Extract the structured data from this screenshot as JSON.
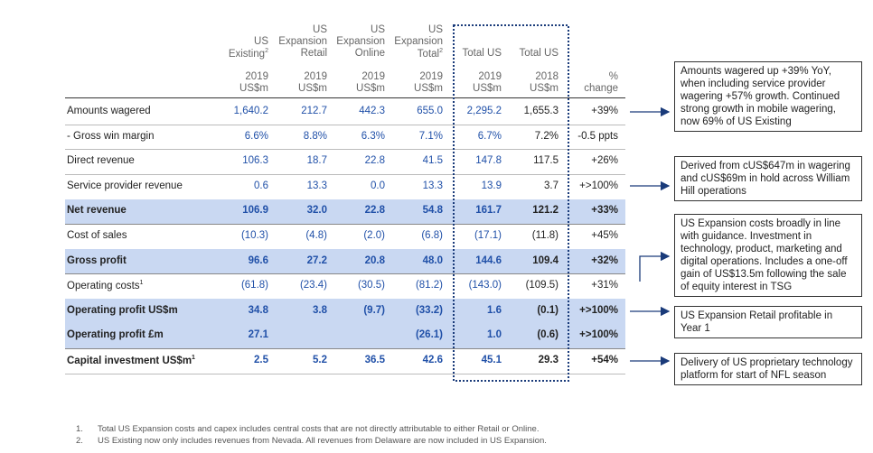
{
  "table": {
    "columns": [
      {
        "top": [
          "US",
          "Existing"
        ],
        "sup": "2",
        "sub": [
          "2019",
          "US$m"
        ]
      },
      {
        "top": [
          "US",
          "Expansion",
          "Retail"
        ],
        "sub": [
          "2019",
          "US$m"
        ]
      },
      {
        "top": [
          "US",
          "Expansion",
          "Online"
        ],
        "sub": [
          "2019",
          "US$m"
        ]
      },
      {
        "top": [
          "US",
          "Expansion",
          "Total"
        ],
        "sup": "2",
        "sub": [
          "2019",
          "US$m"
        ]
      },
      {
        "top": [
          "Total US"
        ],
        "sub": [
          "2019",
          "US$m"
        ]
      },
      {
        "top": [
          "Total US"
        ],
        "sub": [
          "2018",
          "US$m"
        ]
      },
      {
        "top": [],
        "sub": [
          "%",
          "change"
        ]
      }
    ],
    "rows": [
      {
        "label": "Amounts wagered",
        "values": [
          "1,640.2",
          "212.7",
          "442.3",
          "655.0",
          "2,295.2",
          "1,655.3",
          "+39%"
        ]
      },
      {
        "label": "- Gross win margin",
        "values": [
          "6.6%",
          "8.8%",
          "6.3%",
          "7.1%",
          "6.7%",
          "7.2%",
          "-0.5 ppts"
        ]
      },
      {
        "label": "Direct revenue",
        "values": [
          "106.3",
          "18.7",
          "22.8",
          "41.5",
          "147.8",
          "117.5",
          "+26%"
        ]
      },
      {
        "label": "Service provider revenue",
        "values": [
          "0.6",
          "13.3",
          "0.0",
          "13.3",
          "13.9",
          "3.7",
          "+>100%"
        ]
      },
      {
        "label": "Net revenue",
        "bold": true,
        "shaded": true,
        "values": [
          "106.9",
          "32.0",
          "22.8",
          "54.8",
          "161.7",
          "121.2",
          "+33%"
        ]
      },
      {
        "label": "Cost of sales",
        "values": [
          "(10.3)",
          "(4.8)",
          "(2.0)",
          "(6.8)",
          "(17.1)",
          "(11.8)",
          "+45%"
        ]
      },
      {
        "label": "Gross profit",
        "bold": true,
        "shaded": true,
        "values": [
          "96.6",
          "27.2",
          "20.8",
          "48.0",
          "144.6",
          "109.4",
          "+32%"
        ]
      },
      {
        "label": "Operating costs",
        "sup": "1",
        "values": [
          "(61.8)",
          "(23.4)",
          "(30.5)",
          "(81.2)",
          "(143.0)",
          "(109.5)",
          "+31%"
        ]
      },
      {
        "label": "Operating profit US$m",
        "bold": true,
        "shaded": true,
        "values": [
          "34.8",
          "3.8",
          "(9.7)",
          "(33.2)",
          "1.6",
          "(0.1)",
          "+>100%"
        ]
      },
      {
        "label": "Operating profit £m",
        "bold": true,
        "shaded": true,
        "values": [
          "27.1",
          null,
          null,
          "(26.1)",
          "1.0",
          "(0.6)",
          "+>100%"
        ]
      },
      {
        "label": "Capital investment US$m",
        "sup": "1",
        "bold": true,
        "values": [
          "2.5",
          "5.2",
          "36.5",
          "42.6",
          "45.1",
          "29.3",
          "+54%"
        ]
      }
    ]
  },
  "notes": [
    "Amounts wagered up +39% YoY, when including service provider wagering +57% growth. Continued strong growth in mobile wagering, now 69% of US Existing",
    "Derived from cUS$647m in wagering and cUS$69m in hold across William Hill operations",
    "US Expansion costs broadly in line with guidance. Investment in technology, product, marketing and digital operations. Includes a one-off gain of US$13.5m following the sale of equity interest in TSG",
    "US Expansion Retail profitable in Year 1",
    "Delivery of US proprietary technology platform for start of NFL season"
  ],
  "footnotes": [
    {
      "number": "1.",
      "text": "Total US Expansion costs and capex includes central costs that are not directly attributable to either Retail or Online."
    },
    {
      "number": "2.",
      "text": "US Existing now only includes revenues from Nevada. All revenues from Delaware are now included in US Expansion."
    }
  ]
}
